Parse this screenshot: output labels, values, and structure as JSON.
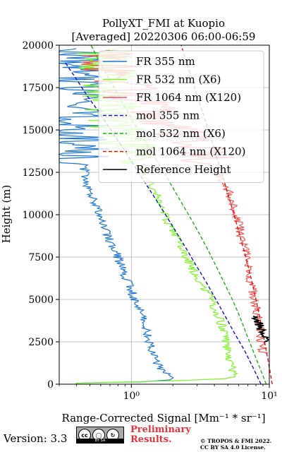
{
  "chart_data": {
    "type": "line",
    "title": "PollyXT_FMI at Kuopio",
    "subtitle": "[Averaged] 20220306 06:00-06:59",
    "xlabel": "Range-Corrected Signal [Mm⁻¹ * sr⁻¹]",
    "ylabel": "Height (m)",
    "xscale": "log",
    "xlim": [
      0.3,
      10
    ],
    "ylim": [
      0,
      20000
    ],
    "x_ticks": [
      {
        "value": 1,
        "label": "10⁰"
      },
      {
        "value": 10,
        "label": "10¹"
      }
    ],
    "y_ticks": [
      0,
      2500,
      5000,
      7500,
      10000,
      12500,
      15000,
      17500,
      20000
    ],
    "y_tick_labels": [
      "0",
      "2500",
      "5000",
      "7500",
      "10000",
      "12500",
      "15000",
      "17500",
      "20000"
    ],
    "grid": true,
    "legend_position": "upper-right",
    "series": [
      {
        "name": "FR 355 nm",
        "color": "#1f77d4",
        "style": "solid",
        "noisy": true,
        "points": [
          [
            0.4,
            60
          ],
          [
            0.55,
            90
          ],
          [
            1.2,
            140
          ],
          [
            1.9,
            250
          ],
          [
            2.0,
            380
          ],
          [
            1.9,
            500
          ],
          [
            1.7,
            800
          ],
          [
            1.5,
            1300
          ],
          [
            1.4,
            2000
          ],
          [
            1.3,
            3000
          ],
          [
            1.2,
            4000
          ],
          [
            1.05,
            5000
          ],
          [
            0.95,
            6000
          ],
          [
            0.85,
            7000
          ],
          [
            0.75,
            8000
          ],
          [
            0.65,
            9000
          ],
          [
            0.58,
            10000
          ],
          [
            0.52,
            11000
          ],
          [
            0.47,
            12000
          ],
          [
            0.45,
            13000
          ],
          [
            0.42,
            14000
          ],
          [
            0.4,
            15000
          ],
          [
            0.4,
            16000
          ],
          [
            0.4,
            17000
          ],
          [
            0.4,
            18000
          ],
          [
            0.4,
            19000
          ],
          [
            0.4,
            19800
          ]
        ]
      },
      {
        "name": "FR 532 nm (X6)",
        "color": "#7ef526",
        "style": "solid",
        "noisy": true,
        "points": [
          [
            0.4,
            60
          ],
          [
            1.0,
            140
          ],
          [
            2.4,
            220
          ],
          [
            4.8,
            330
          ],
          [
            5.7,
            450
          ],
          [
            5.5,
            700
          ],
          [
            5.3,
            1000
          ],
          [
            5.2,
            1500
          ],
          [
            5.0,
            2000
          ],
          [
            4.7,
            3000
          ],
          [
            4.3,
            4000
          ],
          [
            3.8,
            5000
          ],
          [
            3.2,
            6000
          ],
          [
            2.7,
            7000
          ],
          [
            2.3,
            8000
          ],
          [
            2.0,
            9000
          ],
          [
            1.75,
            10000
          ],
          [
            1.55,
            11000
          ],
          [
            1.35,
            12000
          ],
          [
            1.15,
            13000
          ],
          [
            0.95,
            14000
          ],
          [
            0.8,
            15000
          ],
          [
            0.75,
            16000
          ],
          [
            0.7,
            17000
          ],
          [
            0.68,
            18000
          ],
          [
            0.66,
            19000
          ],
          [
            0.65,
            19700
          ]
        ]
      },
      {
        "name": "FR 1064 nm (X120)",
        "color": "#f55050",
        "style": "solid",
        "noisy": true,
        "points": [
          [
            9.0,
            1800
          ],
          [
            8.6,
            3000
          ],
          [
            8.2,
            4000
          ],
          [
            7.8,
            5000
          ],
          [
            7.4,
            6000
          ],
          [
            7.0,
            7000
          ],
          [
            6.6,
            8000
          ],
          [
            6.2,
            9000
          ],
          [
            5.8,
            10000
          ],
          [
            5.3,
            11000
          ],
          [
            4.6,
            12000
          ],
          [
            3.8,
            13000
          ],
          [
            3.0,
            14000
          ],
          [
            2.2,
            15000
          ],
          [
            1.6,
            16000
          ],
          [
            1.1,
            17000
          ],
          [
            0.8,
            18000
          ],
          [
            0.7,
            19000
          ],
          [
            0.7,
            19700
          ]
        ]
      },
      {
        "name": "mol 355 nm",
        "color": "#1111cc",
        "style": "dashed",
        "noisy": false,
        "points": [
          [
            8.7,
            0
          ],
          [
            7.6,
            1000
          ],
          [
            6.6,
            2000
          ],
          [
            5.6,
            3000
          ],
          [
            4.8,
            4000
          ],
          [
            4.1,
            5000
          ],
          [
            3.5,
            6000
          ],
          [
            2.95,
            7000
          ],
          [
            2.5,
            8000
          ],
          [
            2.1,
            9000
          ],
          [
            1.77,
            10000
          ],
          [
            1.48,
            11000
          ],
          [
            1.23,
            12000
          ],
          [
            1.03,
            13000
          ],
          [
            0.86,
            14000
          ],
          [
            0.71,
            15000
          ],
          [
            0.59,
            16000
          ],
          [
            0.48,
            17000
          ],
          [
            0.4,
            18000
          ],
          [
            0.33,
            19000
          ]
        ]
      },
      {
        "name": "mol 532 nm (X6)",
        "color": "#22aa22",
        "style": "dashed",
        "noisy": false,
        "points": [
          [
            9.5,
            0
          ],
          [
            8.5,
            1000
          ],
          [
            7.6,
            2000
          ],
          [
            6.8,
            3000
          ],
          [
            6.1,
            4000
          ],
          [
            5.4,
            5000
          ],
          [
            4.7,
            6000
          ],
          [
            4.1,
            7000
          ],
          [
            3.55,
            8000
          ],
          [
            3.05,
            9000
          ],
          [
            2.6,
            10000
          ],
          [
            2.2,
            11000
          ],
          [
            1.87,
            12000
          ],
          [
            1.58,
            13000
          ],
          [
            1.33,
            14000
          ],
          [
            1.12,
            15000
          ],
          [
            0.95,
            16000
          ],
          [
            0.81,
            17000
          ],
          [
            0.69,
            18000
          ],
          [
            0.59,
            19000
          ],
          [
            0.51,
            20000
          ]
        ]
      },
      {
        "name": "mol 1064 nm (X120)",
        "color": "#dd1111",
        "style": "dashed",
        "noisy": false,
        "points": [
          [
            10.5,
            0
          ],
          [
            10.0,
            1000
          ],
          [
            9.5,
            2000
          ],
          [
            9.0,
            3000
          ],
          [
            8.5,
            4000
          ],
          [
            8.0,
            5000
          ],
          [
            7.5,
            6000
          ],
          [
            7.0,
            7000
          ],
          [
            6.5,
            8000
          ],
          [
            6.0,
            9000
          ],
          [
            5.55,
            10000
          ],
          [
            5.1,
            11000
          ],
          [
            4.7,
            12000
          ],
          [
            4.3,
            13000
          ],
          [
            3.95,
            14000
          ],
          [
            3.6,
            15000
          ],
          [
            3.3,
            16000
          ],
          [
            3.0,
            17000
          ],
          [
            2.75,
            18000
          ],
          [
            2.5,
            19000
          ],
          [
            2.3,
            20000
          ]
        ]
      },
      {
        "name": "Reference Height",
        "color": "#000000",
        "style": "solid",
        "noisy": true,
        "points": [
          [
            8.0,
            4000
          ],
          [
            8.3,
            3700
          ],
          [
            8.6,
            3400
          ],
          [
            8.9,
            3000
          ],
          [
            9.1,
            2700
          ],
          [
            9.2,
            2500
          ]
        ]
      }
    ]
  },
  "footer": {
    "version": "Version: 3.3",
    "license_badge": "BY SA",
    "preliminary_line1": "Preliminary",
    "preliminary_line2": "Results.",
    "credit_line1": "© TROPOS & FMI 2022.",
    "credit_line2": "CC BY SA 4.0 License."
  }
}
